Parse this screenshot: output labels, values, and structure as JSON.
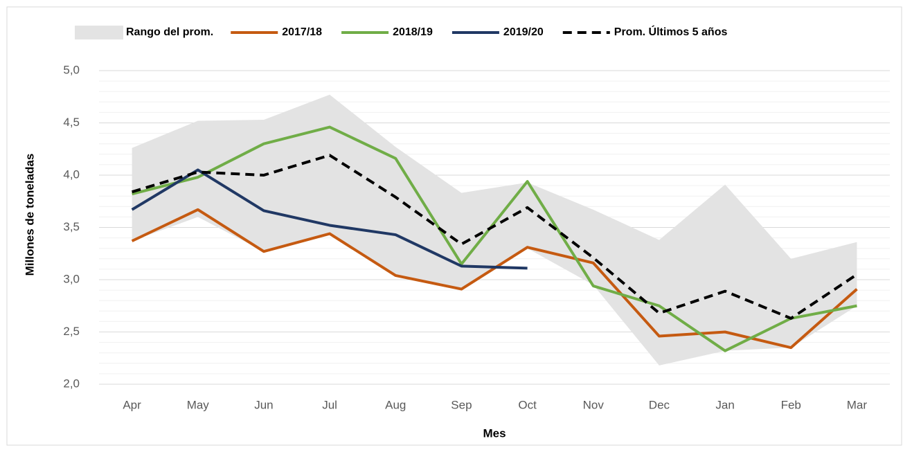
{
  "chart_data": {
    "type": "line",
    "x_label": "Mes",
    "y_label": "Millones de toneladas",
    "categories": [
      "Apr",
      "May",
      "Jun",
      "Jul",
      "Aug",
      "Sep",
      "Oct",
      "Nov",
      "Dec",
      "Jan",
      "Feb",
      "Mar"
    ],
    "range": {
      "name": "Rango del prom.",
      "color": "#e3e3e3",
      "upper": [
        4.26,
        4.52,
        4.53,
        4.77,
        4.27,
        3.83,
        3.93,
        3.67,
        3.38,
        3.91,
        3.2,
        3.36
      ],
      "lower": [
        3.37,
        3.6,
        3.27,
        3.44,
        3.04,
        2.91,
        3.3,
        2.95,
        2.18,
        2.32,
        2.35,
        2.75
      ]
    },
    "series": [
      {
        "name": "2017/18",
        "color": "#c55a11",
        "dashed": false,
        "values": [
          3.37,
          3.67,
          3.27,
          3.44,
          3.04,
          2.91,
          3.31,
          3.16,
          2.46,
          2.5,
          2.35,
          2.91
        ]
      },
      {
        "name": "2018/19",
        "color": "#70ad47",
        "dashed": false,
        "values": [
          3.82,
          3.98,
          4.3,
          4.46,
          4.16,
          3.15,
          3.94,
          2.94,
          2.75,
          2.32,
          2.63,
          2.75
        ]
      },
      {
        "name": "2019/20",
        "color": "#203864",
        "dashed": false,
        "values": [
          3.67,
          4.05,
          3.66,
          3.52,
          3.43,
          3.13,
          3.11,
          null,
          null,
          null,
          null,
          null
        ]
      },
      {
        "name": "Prom. Últimos 5 años",
        "color": "#000000",
        "dashed": true,
        "values": [
          3.84,
          4.03,
          4.0,
          4.19,
          3.79,
          3.34,
          3.69,
          3.21,
          2.68,
          2.89,
          2.63,
          3.05
        ]
      }
    ],
    "ylim": [
      2.0,
      5.0
    ],
    "yticks": [
      {
        "value": 2.0,
        "label": "2,0"
      },
      {
        "value": 2.5,
        "label": "2,5"
      },
      {
        "value": 3.0,
        "label": "3,0"
      },
      {
        "value": 3.5,
        "label": "3,5"
      },
      {
        "value": 4.0,
        "label": "4,0"
      },
      {
        "value": 4.5,
        "label": "4,5"
      },
      {
        "value": 5.0,
        "label": "5,0"
      }
    ],
    "yminorticks": [
      2.1,
      2.2,
      2.3,
      2.4,
      2.6,
      2.7,
      2.8,
      2.9,
      3.1,
      3.2,
      3.3,
      3.4,
      3.6,
      3.7,
      3.8,
      3.9,
      4.1,
      4.2,
      4.3,
      4.4,
      4.6,
      4.7,
      4.8,
      4.9
    ],
    "grid": true,
    "legend": "top"
  }
}
